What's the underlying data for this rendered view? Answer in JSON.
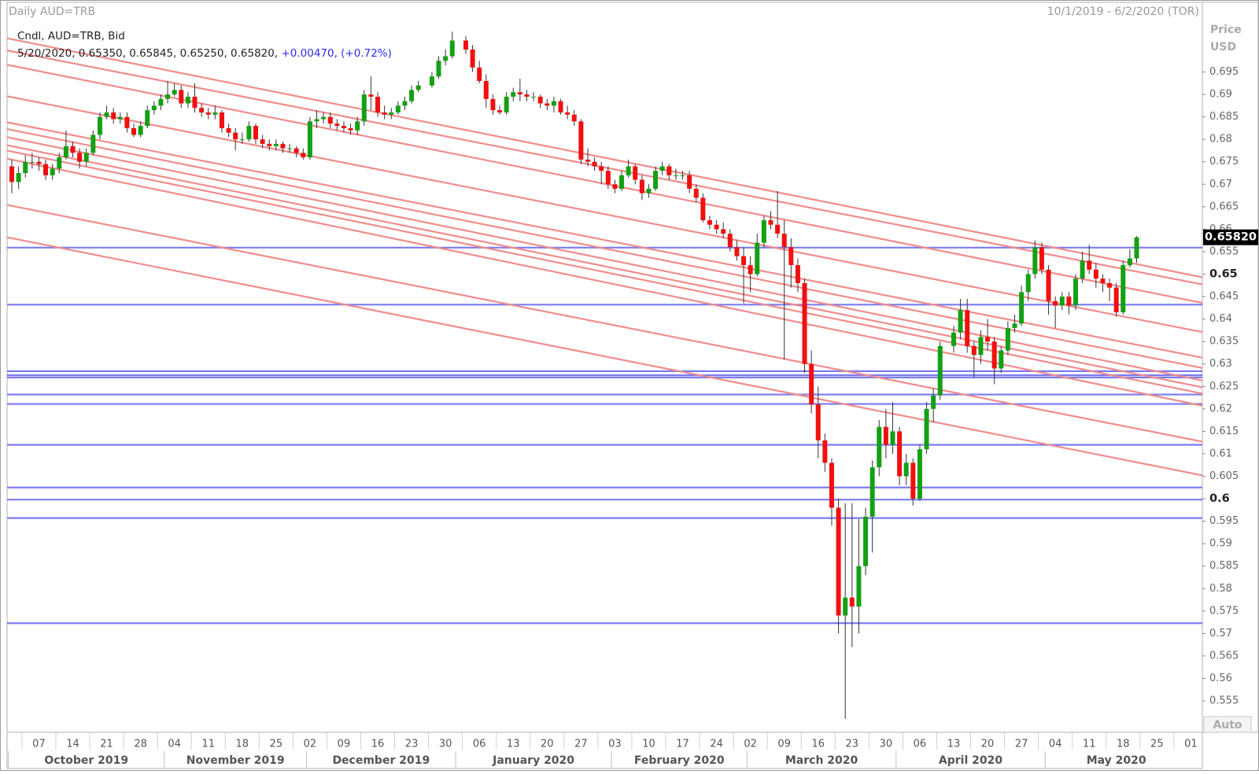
{
  "chart_data": {
    "type": "candlestick",
    "title": "Daily AUD=TRB",
    "date_range": "10/1/2019 - 6/2/2020 (TOR)",
    "legend_line_1": "Cndl, AUD=TRB, Bid",
    "legend_line_2": "5/20/2020, 0.65350, 0.65845, 0.65250, 0.65820,",
    "legend_change": "+0.00470, (+0.72%)",
    "y_axis_label": [
      "Price",
      "USD"
    ],
    "auto_button": "Auto",
    "up_color": "#14a014",
    "down_color": "#f01010",
    "x": [
      "2019-10-01",
      "2019-10-02",
      "2019-10-03",
      "2019-10-04",
      "2019-10-07",
      "2019-10-08",
      "2019-10-09",
      "2019-10-10",
      "2019-10-11",
      "2019-10-14",
      "2019-10-15",
      "2019-10-16",
      "2019-10-17",
      "2019-10-18",
      "2019-10-21",
      "2019-10-22",
      "2019-10-23",
      "2019-10-24",
      "2019-10-25",
      "2019-10-28",
      "2019-10-29",
      "2019-10-30",
      "2019-10-31",
      "2019-11-01",
      "2019-11-04",
      "2019-11-05",
      "2019-11-06",
      "2019-11-07",
      "2019-11-08",
      "2019-11-11",
      "2019-11-12",
      "2019-11-13",
      "2019-11-14",
      "2019-11-15",
      "2019-11-18",
      "2019-11-19",
      "2019-11-20",
      "2019-11-21",
      "2019-11-22",
      "2019-11-25",
      "2019-11-26",
      "2019-11-27",
      "2019-11-28",
      "2019-11-29",
      "2019-12-02",
      "2019-12-03",
      "2019-12-04",
      "2019-12-05",
      "2019-12-06",
      "2019-12-09",
      "2019-12-10",
      "2019-12-11",
      "2019-12-12",
      "2019-12-13",
      "2019-12-16",
      "2019-12-17",
      "2019-12-18",
      "2019-12-19",
      "2019-12-20",
      "2019-12-23",
      "2019-12-24",
      "2019-12-26",
      "2019-12-27",
      "2019-12-30",
      "2019-12-31",
      "2020-01-02",
      "2020-01-03",
      "2020-01-06",
      "2020-01-07",
      "2020-01-08",
      "2020-01-09",
      "2020-01-10",
      "2020-01-13",
      "2020-01-14",
      "2020-01-15",
      "2020-01-16",
      "2020-01-17",
      "2020-01-20",
      "2020-01-21",
      "2020-01-22",
      "2020-01-23",
      "2020-01-24",
      "2020-01-27",
      "2020-01-28",
      "2020-01-29",
      "2020-01-30",
      "2020-01-31",
      "2020-02-03",
      "2020-02-04",
      "2020-02-05",
      "2020-02-06",
      "2020-02-07",
      "2020-02-10",
      "2020-02-11",
      "2020-02-12",
      "2020-02-13",
      "2020-02-14",
      "2020-02-17",
      "2020-02-18",
      "2020-02-19",
      "2020-02-20",
      "2020-02-21",
      "2020-02-24",
      "2020-02-25",
      "2020-02-26",
      "2020-02-27",
      "2020-02-28",
      "2020-03-02",
      "2020-03-03",
      "2020-03-04",
      "2020-03-05",
      "2020-03-06",
      "2020-03-09",
      "2020-03-10",
      "2020-03-11",
      "2020-03-12",
      "2020-03-13",
      "2020-03-16",
      "2020-03-17",
      "2020-03-18",
      "2020-03-19",
      "2020-03-20",
      "2020-03-23",
      "2020-03-24",
      "2020-03-25",
      "2020-03-26",
      "2020-03-27",
      "2020-03-30",
      "2020-03-31",
      "2020-04-01",
      "2020-04-02",
      "2020-04-03",
      "2020-04-06",
      "2020-04-07",
      "2020-04-08",
      "2020-04-09",
      "2020-04-13",
      "2020-04-14",
      "2020-04-15",
      "2020-04-16",
      "2020-04-17",
      "2020-04-20",
      "2020-04-21",
      "2020-04-22",
      "2020-04-23",
      "2020-04-24",
      "2020-04-27",
      "2020-04-28",
      "2020-04-29",
      "2020-04-30",
      "2020-05-01",
      "2020-05-04",
      "2020-05-05",
      "2020-05-06",
      "2020-05-07",
      "2020-05-08",
      "2020-05-11",
      "2020-05-12",
      "2020-05-13",
      "2020-05-14",
      "2020-05-15",
      "2020-05-18",
      "2020-05-19",
      "2020-05-20"
    ],
    "open": [
      0.674,
      0.6705,
      0.6725,
      0.675,
      0.675,
      0.6745,
      0.672,
      0.6735,
      0.676,
      0.6785,
      0.677,
      0.675,
      0.677,
      0.681,
      0.685,
      0.686,
      0.6845,
      0.685,
      0.6825,
      0.681,
      0.683,
      0.6865,
      0.6875,
      0.689,
      0.69,
      0.691,
      0.688,
      0.6895,
      0.687,
      0.686,
      0.6855,
      0.686,
      0.6825,
      0.6815,
      0.68,
      0.68,
      0.683,
      0.68,
      0.679,
      0.6785,
      0.679,
      0.678,
      0.678,
      0.677,
      0.676,
      0.684,
      0.6845,
      0.685,
      0.6835,
      0.683,
      0.6825,
      0.682,
      0.684,
      0.69,
      0.6895,
      0.686,
      0.6855,
      0.686,
      0.6875,
      0.6885,
      0.691,
      0.692,
      0.694,
      0.6975,
      0.6985,
      0.702,
      0.7,
      0.696,
      0.693,
      0.689,
      0.6865,
      0.686,
      0.6895,
      0.6905,
      0.69,
      0.6895,
      0.6895,
      0.688,
      0.6875,
      0.6885,
      0.686,
      0.6855,
      0.684,
      0.6755,
      0.675,
      0.674,
      0.673,
      0.67,
      0.669,
      0.672,
      0.674,
      0.671,
      0.668,
      0.669,
      0.673,
      0.674,
      0.672,
      0.672,
      0.672,
      0.669,
      0.667,
      0.662,
      0.661,
      0.66,
      0.659,
      0.656,
      0.654,
      0.652,
      0.65,
      0.657,
      0.662,
      0.661,
      0.659,
      0.656,
      0.652,
      0.648,
      0.63,
      0.621,
      0.613,
      0.608,
      0.598,
      0.574,
      0.578,
      0.576,
      0.585,
      0.596,
      0.607,
      0.616,
      0.612,
      0.615,
      0.605,
      0.608,
      0.6,
      0.611,
      0.62,
      0.623,
      0.634,
      0.637,
      0.642,
      0.634,
      0.632,
      0.636,
      0.635,
      0.629,
      0.633,
      0.638,
      0.639,
      0.646,
      0.65,
      0.656,
      0.651,
      0.644,
      0.643,
      0.645,
      0.643,
      0.649,
      0.653,
      0.651,
      0.649,
      0.648,
      0.647,
      0.6415,
      0.652,
      0.6535
    ],
    "high": [
      0.6755,
      0.674,
      0.6765,
      0.677,
      0.676,
      0.6755,
      0.6745,
      0.677,
      0.682,
      0.6795,
      0.678,
      0.678,
      0.682,
      0.686,
      0.6875,
      0.687,
      0.686,
      0.686,
      0.6835,
      0.684,
      0.6875,
      0.6885,
      0.69,
      0.693,
      0.6925,
      0.692,
      0.6905,
      0.6925,
      0.688,
      0.687,
      0.6875,
      0.6865,
      0.6835,
      0.6825,
      0.6815,
      0.684,
      0.6835,
      0.681,
      0.68,
      0.68,
      0.6795,
      0.679,
      0.6785,
      0.678,
      0.685,
      0.6865,
      0.686,
      0.686,
      0.6845,
      0.684,
      0.6835,
      0.685,
      0.691,
      0.694,
      0.6905,
      0.6875,
      0.687,
      0.6885,
      0.6895,
      0.692,
      0.693,
      0.695,
      0.6985,
      0.7,
      0.704,
      0.703,
      0.701,
      0.6975,
      0.6945,
      0.69,
      0.6875,
      0.6905,
      0.6915,
      0.6935,
      0.691,
      0.6905,
      0.69,
      0.689,
      0.6895,
      0.689,
      0.6875,
      0.6865,
      0.6845,
      0.678,
      0.676,
      0.675,
      0.674,
      0.671,
      0.673,
      0.6755,
      0.6745,
      0.672,
      0.67,
      0.674,
      0.675,
      0.6745,
      0.6735,
      0.673,
      0.673,
      0.67,
      0.668,
      0.663,
      0.662,
      0.6615,
      0.66,
      0.6575,
      0.656,
      0.654,
      0.659,
      0.663,
      0.664,
      0.6685,
      0.662,
      0.658,
      0.6535,
      0.649,
      0.633,
      0.625,
      0.6145,
      0.609,
      0.6,
      0.599,
      0.599,
      0.5955,
      0.598,
      0.6085,
      0.6175,
      0.62,
      0.6215,
      0.616,
      0.61,
      0.609,
      0.612,
      0.6215,
      0.6245,
      0.635,
      0.6385,
      0.6445,
      0.6445,
      0.635,
      0.6375,
      0.64,
      0.636,
      0.634,
      0.6395,
      0.641,
      0.6475,
      0.651,
      0.6575,
      0.657,
      0.652,
      0.645,
      0.646,
      0.646,
      0.65,
      0.655,
      0.6565,
      0.6525,
      0.65,
      0.649,
      0.648,
      0.653,
      0.6555,
      0.65845
    ],
    "low": [
      0.668,
      0.669,
      0.6715,
      0.6735,
      0.673,
      0.671,
      0.671,
      0.6725,
      0.6755,
      0.676,
      0.6735,
      0.674,
      0.6765,
      0.68,
      0.6845,
      0.6835,
      0.6835,
      0.6815,
      0.6805,
      0.6805,
      0.6825,
      0.6855,
      0.6865,
      0.688,
      0.6895,
      0.687,
      0.687,
      0.686,
      0.685,
      0.6845,
      0.6845,
      0.6815,
      0.6805,
      0.6775,
      0.679,
      0.6795,
      0.679,
      0.678,
      0.6775,
      0.6775,
      0.677,
      0.677,
      0.676,
      0.6755,
      0.6755,
      0.6825,
      0.6835,
      0.6825,
      0.682,
      0.6815,
      0.681,
      0.681,
      0.683,
      0.6865,
      0.685,
      0.6845,
      0.6845,
      0.6855,
      0.6865,
      0.688,
      0.6905,
      0.6915,
      0.6935,
      0.6965,
      0.698,
      0.699,
      0.695,
      0.6925,
      0.687,
      0.6855,
      0.6855,
      0.6855,
      0.6885,
      0.6885,
      0.6885,
      0.6885,
      0.687,
      0.6865,
      0.686,
      0.6855,
      0.6845,
      0.683,
      0.6745,
      0.674,
      0.673,
      0.67,
      0.669,
      0.668,
      0.6685,
      0.6715,
      0.67,
      0.6665,
      0.667,
      0.6685,
      0.672,
      0.671,
      0.671,
      0.671,
      0.668,
      0.666,
      0.6615,
      0.66,
      0.659,
      0.658,
      0.655,
      0.653,
      0.6435,
      0.646,
      0.6495,
      0.656,
      0.66,
      0.658,
      0.631,
      0.647,
      0.646,
      0.628,
      0.619,
      0.609,
      0.606,
      0.594,
      0.57,
      0.551,
      0.567,
      0.57,
      0.583,
      0.588,
      0.605,
      0.609,
      0.61,
      0.603,
      0.603,
      0.5985,
      0.5995,
      0.61,
      0.617,
      0.622,
      0.6325,
      0.6355,
      0.6325,
      0.627,
      0.63,
      0.633,
      0.6255,
      0.628,
      0.632,
      0.637,
      0.6385,
      0.644,
      0.649,
      0.65,
      0.641,
      0.638,
      0.642,
      0.641,
      0.642,
      0.648,
      0.65,
      0.647,
      0.646,
      0.644,
      0.6405,
      0.641,
      0.6515,
      0.6525
    ],
    "close": [
      0.6705,
      0.6725,
      0.675,
      0.675,
      0.6745,
      0.672,
      0.6735,
      0.676,
      0.6785,
      0.677,
      0.675,
      0.677,
      0.681,
      0.685,
      0.686,
      0.6845,
      0.685,
      0.6825,
      0.681,
      0.683,
      0.6865,
      0.6875,
      0.689,
      0.69,
      0.691,
      0.688,
      0.6895,
      0.687,
      0.686,
      0.6855,
      0.686,
      0.6825,
      0.6815,
      0.68,
      0.68,
      0.683,
      0.68,
      0.679,
      0.6785,
      0.679,
      0.678,
      0.678,
      0.677,
      0.676,
      0.684,
      0.6845,
      0.685,
      0.6835,
      0.683,
      0.6825,
      0.682,
      0.684,
      0.69,
      0.6895,
      0.686,
      0.6855,
      0.686,
      0.6875,
      0.6885,
      0.691,
      0.692,
      0.694,
      0.6975,
      0.6985,
      0.702,
      0.7,
      0.696,
      0.693,
      0.689,
      0.6865,
      0.686,
      0.6895,
      0.6905,
      0.69,
      0.6895,
      0.6895,
      0.688,
      0.6875,
      0.6885,
      0.686,
      0.6855,
      0.684,
      0.6755,
      0.675,
      0.674,
      0.673,
      0.67,
      0.669,
      0.672,
      0.674,
      0.671,
      0.668,
      0.669,
      0.673,
      0.674,
      0.672,
      0.672,
      0.672,
      0.669,
      0.667,
      0.662,
      0.661,
      0.66,
      0.659,
      0.656,
      0.654,
      0.652,
      0.65,
      0.657,
      0.662,
      0.661,
      0.659,
      0.656,
      0.652,
      0.648,
      0.63,
      0.621,
      0.613,
      0.608,
      0.598,
      0.574,
      0.578,
      0.576,
      0.585,
      0.596,
      0.607,
      0.616,
      0.612,
      0.615,
      0.605,
      0.608,
      0.6,
      0.611,
      0.62,
      0.623,
      0.634,
      0.637,
      0.642,
      0.634,
      0.632,
      0.636,
      0.635,
      0.629,
      0.633,
      0.638,
      0.639,
      0.646,
      0.65,
      0.656,
      0.651,
      0.644,
      0.643,
      0.645,
      0.643,
      0.649,
      0.653,
      0.651,
      0.649,
      0.648,
      0.647,
      0.6415,
      0.652,
      0.6535,
      0.6582
    ],
    "last_price": {
      "value": 0.6582,
      "label": "0.65820"
    },
    "xlim": [
      "2019-10-01",
      "2020-06-02"
    ],
    "ylim": [
      0.548,
      0.7105
    ],
    "yticks": [
      0.555,
      0.56,
      0.565,
      0.57,
      0.575,
      0.58,
      0.585,
      0.59,
      0.595,
      0.6,
      0.605,
      0.61,
      0.615,
      0.62,
      0.625,
      0.63,
      0.635,
      0.64,
      0.645,
      0.65,
      0.655,
      0.66,
      0.665,
      0.67,
      0.675,
      0.68,
      0.685,
      0.69,
      0.695
    ],
    "xticks": [
      {
        "value": "2019-10-07",
        "label": "07"
      },
      {
        "value": "2019-10-14",
        "label": "14"
      },
      {
        "value": "2019-10-21",
        "label": "21"
      },
      {
        "value": "2019-10-28",
        "label": "28"
      },
      {
        "value": "2019-11-04",
        "label": "04"
      },
      {
        "value": "2019-11-11",
        "label": "11"
      },
      {
        "value": "2019-11-18",
        "label": "18"
      },
      {
        "value": "2019-11-25",
        "label": "25"
      },
      {
        "value": "2019-12-02",
        "label": "02"
      },
      {
        "value": "2019-12-09",
        "label": "09"
      },
      {
        "value": "2019-12-16",
        "label": "16"
      },
      {
        "value": "2019-12-23",
        "label": "23"
      },
      {
        "value": "2019-12-30",
        "label": "30"
      },
      {
        "value": "2020-01-06",
        "label": "06"
      },
      {
        "value": "2020-01-13",
        "label": "13"
      },
      {
        "value": "2020-01-20",
        "label": "20"
      },
      {
        "value": "2020-01-27",
        "label": "27"
      },
      {
        "value": "2020-02-03",
        "label": "03"
      },
      {
        "value": "2020-02-10",
        "label": "10"
      },
      {
        "value": "2020-02-17",
        "label": "17"
      },
      {
        "value": "2020-02-24",
        "label": "24"
      },
      {
        "value": "2020-03-02",
        "label": "02"
      },
      {
        "value": "2020-03-09",
        "label": "09"
      },
      {
        "value": "2020-03-16",
        "label": "16"
      },
      {
        "value": "2020-03-23",
        "label": "23"
      },
      {
        "value": "2020-03-30",
        "label": "30"
      },
      {
        "value": "2020-04-06",
        "label": "06"
      },
      {
        "value": "2020-04-13",
        "label": "13"
      },
      {
        "value": "2020-04-20",
        "label": "20"
      },
      {
        "value": "2020-04-27",
        "label": "27"
      },
      {
        "value": "2020-05-04",
        "label": "04"
      },
      {
        "value": "2020-05-11",
        "label": "11"
      },
      {
        "value": "2020-05-18",
        "label": "18"
      },
      {
        "value": "2020-05-25",
        "label": "25"
      },
      {
        "value": "2020-06-01",
        "label": "01"
      }
    ],
    "month_labels": [
      {
        "value": "2019-10",
        "label": "October 2019"
      },
      {
        "value": "2019-11",
        "label": "November 2019"
      },
      {
        "value": "2019-12",
        "label": "December 2019"
      },
      {
        "value": "2020-01",
        "label": "January 2020"
      },
      {
        "value": "2020-02",
        "label": "February 2020"
      },
      {
        "value": "2020-03",
        "label": "March 2020"
      },
      {
        "value": "2020-04",
        "label": "April 2020"
      },
      {
        "value": "2020-05",
        "label": "May 2020"
      }
    ],
    "hline_color": "#7b7bf2",
    "hlines": [
      0.6559,
      0.6432,
      0.6284,
      0.6275,
      0.627,
      0.6232,
      0.6211,
      0.612,
      0.6025,
      0.5998,
      0.5957,
      0.5723
    ],
    "trendline_color": "#f08c8c",
    "trendlines": [
      {
        "x": [
          "2019-10-01",
          "2020-06-02"
        ],
        "y": [
          0.7025,
          0.6493
        ]
      },
      {
        "x": [
          "2019-10-01",
          "2020-06-02"
        ],
        "y": [
          0.6998,
          0.6477
        ]
      },
      {
        "x": [
          "2019-10-01",
          "2020-06-02"
        ],
        "y": [
          0.6966,
          0.6436
        ]
      },
      {
        "x": [
          "2019-10-01",
          "2020-06-02"
        ],
        "y": [
          0.6896,
          0.6371
        ]
      },
      {
        "x": [
          "2019-10-01",
          "2020-06-02"
        ],
        "y": [
          0.6838,
          0.6314
        ]
      },
      {
        "x": [
          "2019-10-01",
          "2020-06-02"
        ],
        "y": [
          0.6823,
          0.6291
        ]
      },
      {
        "x": [
          "2019-10-01",
          "2020-06-02"
        ],
        "y": [
          0.6805,
          0.6263
        ]
      },
      {
        "x": [
          "2019-10-01",
          "2020-06-02"
        ],
        "y": [
          0.6787,
          0.6248
        ]
      },
      {
        "x": [
          "2019-10-01",
          "2020-06-02"
        ],
        "y": [
          0.6775,
          0.6234
        ]
      },
      {
        "x": [
          "2019-10-01",
          "2020-06-02"
        ],
        "y": [
          0.6757,
          0.6207
        ]
      },
      {
        "x": [
          "2019-10-01",
          "2020-06-02"
        ],
        "y": [
          0.6654,
          0.6127
        ]
      },
      {
        "x": [
          "2019-10-01",
          "2020-06-02"
        ],
        "y": [
          0.6582,
          0.6052
        ]
      }
    ]
  }
}
